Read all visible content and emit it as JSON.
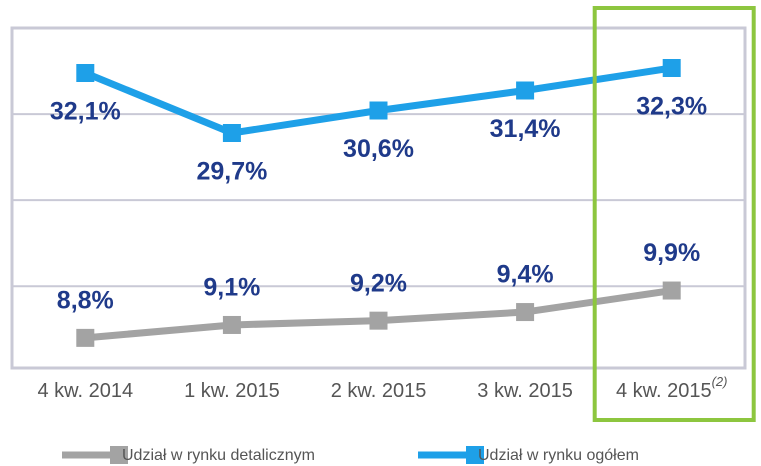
{
  "chart_data": {
    "type": "line",
    "categories": [
      "4 kw. 2014",
      "1 kw. 2015",
      "2 kw. 2015",
      "3 kw. 2015",
      "4 kw. 2015"
    ],
    "category_notes": [
      null,
      null,
      null,
      null,
      "(2)"
    ],
    "series": [
      {
        "name": "Udział w rynku detalicznym",
        "color": "#a3a3a3",
        "values": [
          8.8,
          9.1,
          9.2,
          9.4,
          9.9
        ],
        "value_labels": [
          "8,8%",
          "9,1%",
          "9,2%",
          "9,4%",
          "9,9%"
        ]
      },
      {
        "name": "Udział w rynku ogółem",
        "color": "#1ea0e8",
        "axis": "y2",
        "values": [
          32.1,
          29.7,
          30.6,
          31.4,
          32.3
        ],
        "value_labels": [
          "32,1%",
          "29,7%",
          "30,6%",
          "31,4%",
          "32,3%"
        ]
      }
    ],
    "ylim": [
      8.1,
      16
    ],
    "yticks": [
      10,
      12,
      14
    ],
    "y2lim": [
      20.3,
      33.9
    ],
    "tick_labels": false,
    "grid": true,
    "legend": "bottom",
    "highlight_color": "#8dc63f",
    "highlight_index": 4
  }
}
